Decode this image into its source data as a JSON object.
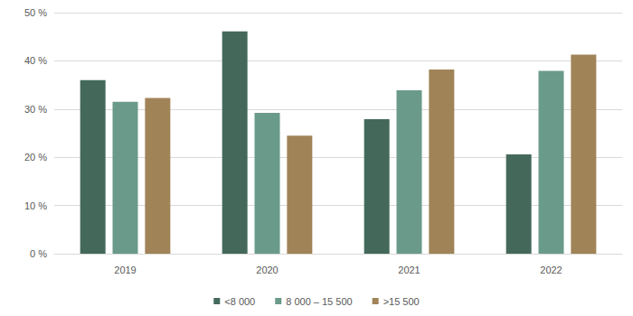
{
  "chart_data": {
    "type": "bar",
    "categories": [
      "2019",
      "2020",
      "2021",
      "2022"
    ],
    "series": [
      {
        "name": "<8 000",
        "color": "#44695a",
        "values": [
          36.0,
          46.1,
          27.9,
          20.6
        ]
      },
      {
        "name": "8 000 – 15 500",
        "color": "#6a9a8a",
        "values": [
          31.5,
          29.2,
          33.9,
          37.9
        ]
      },
      {
        "name": ">15 500",
        "color": "#a08458",
        "values": [
          32.3,
          24.5,
          38.2,
          41.3
        ]
      }
    ],
    "ylim": [
      0,
      50
    ],
    "yticks": [
      {
        "value": 0,
        "label": "0 %"
      },
      {
        "value": 10,
        "label": "10 %"
      },
      {
        "value": 20,
        "label": "20 %"
      },
      {
        "value": 30,
        "label": "30 %"
      },
      {
        "value": 40,
        "label": "40 %"
      },
      {
        "value": 50,
        "label": "50 %"
      }
    ],
    "grid": true,
    "legend": "bottom"
  }
}
